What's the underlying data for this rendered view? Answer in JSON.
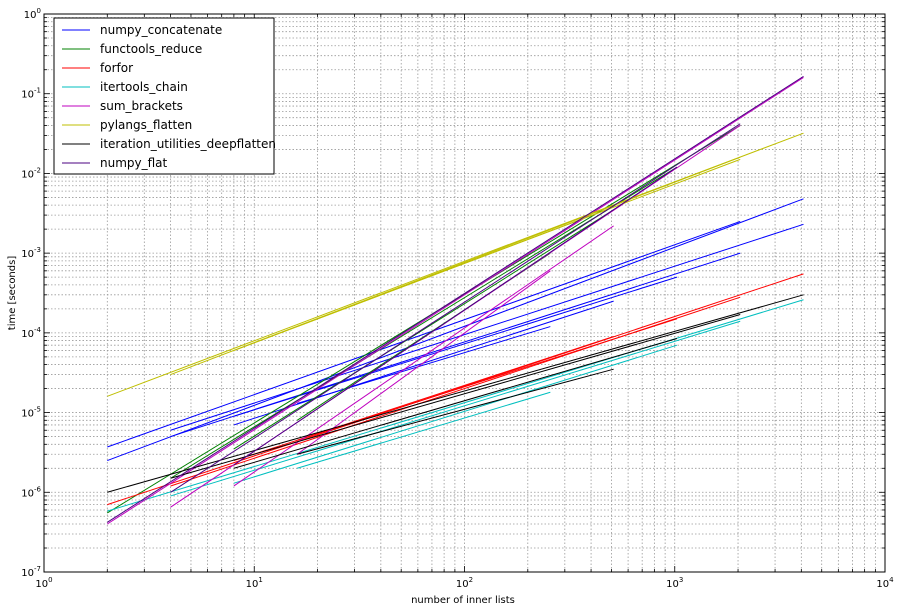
{
  "chart_data": {
    "type": "line",
    "title": "",
    "xlabel": "number of inner lists",
    "ylabel": "time [seconds]",
    "xscale": "log",
    "yscale": "log",
    "xlim": [
      1,
      10000
    ],
    "ylim": [
      1e-07,
      1
    ],
    "grid": true,
    "legend_position": "top-left",
    "x_ticks": [
      {
        "value": 1,
        "base": "10",
        "exp": "0"
      },
      {
        "value": 10,
        "base": "10",
        "exp": "1"
      },
      {
        "value": 100,
        "base": "10",
        "exp": "2"
      },
      {
        "value": 1000,
        "base": "10",
        "exp": "3"
      },
      {
        "value": 10000,
        "base": "10",
        "exp": "4"
      }
    ],
    "y_ticks": [
      {
        "value": 1e-07,
        "base": "10",
        "exp": "-7"
      },
      {
        "value": 1e-06,
        "base": "10",
        "exp": "-6"
      },
      {
        "value": 1e-05,
        "base": "10",
        "exp": "-5"
      },
      {
        "value": 0.0001,
        "base": "10",
        "exp": "-4"
      },
      {
        "value": 0.001,
        "base": "10",
        "exp": "-3"
      },
      {
        "value": 0.01,
        "base": "10",
        "exp": "-2"
      },
      {
        "value": 0.1,
        "base": "10",
        "exp": "-1"
      },
      {
        "value": 1,
        "base": "10",
        "exp": "0"
      }
    ],
    "series": [
      {
        "name": "numpy_concatenate",
        "color": "#0000ff",
        "lines": [
          [
            [
              2,
              3.7e-06
            ],
            [
              2048,
              0.0025
            ]
          ],
          [
            [
              2,
              2.5e-06
            ],
            [
              4096,
              0.0048
            ]
          ],
          [
            [
              4,
              6e-06
            ],
            [
              4096,
              0.0023
            ]
          ],
          [
            [
              4,
              5e-06
            ],
            [
              2048,
              0.001
            ]
          ],
          [
            [
              8,
              9e-06
            ],
            [
              1024,
              0.0005
            ]
          ],
          [
            [
              8,
              7e-06
            ],
            [
              512,
              0.00025
            ]
          ],
          [
            [
              16,
              1.3e-05
            ],
            [
              256,
              0.00012
            ]
          ]
        ]
      },
      {
        "name": "functools_reduce",
        "color": "#008000",
        "lines": [
          [
            [
              2,
              5.5e-07
            ],
            [
              2048,
              0.04
            ]
          ],
          [
            [
              4,
              1.5e-06
            ],
            [
              1024,
              0.012
            ]
          ],
          [
            [
              8,
              3.5e-06
            ],
            [
              512,
              0.0035
            ]
          ],
          [
            [
              16,
              8e-06
            ],
            [
              256,
              0.001
            ]
          ]
        ]
      },
      {
        "name": "forfor",
        "color": "#ff0000",
        "lines": [
          [
            [
              2,
              7e-07
            ],
            [
              4096,
              0.00055
            ]
          ],
          [
            [
              4,
              1.2e-06
            ],
            [
              2048,
              0.00028
            ]
          ],
          [
            [
              8,
              2.5e-06
            ],
            [
              1024,
              0.00015
            ]
          ],
          [
            [
              16,
              4.5e-06
            ],
            [
              512,
              9e-05
            ]
          ]
        ]
      },
      {
        "name": "itertools_chain",
        "color": "#00bfbf",
        "lines": [
          [
            [
              2,
              5.8e-07
            ],
            [
              4096,
              0.00026
            ]
          ],
          [
            [
              4,
              9e-07
            ],
            [
              2048,
              0.00014
            ]
          ],
          [
            [
              8,
              1.3e-06
            ],
            [
              1024,
              7e-05
            ]
          ],
          [
            [
              16,
              2e-06
            ],
            [
              256,
              1.8e-05
            ]
          ]
        ]
      },
      {
        "name": "sum_brackets",
        "color": "#bf00bf",
        "lines": [
          [
            [
              2,
              4e-07
            ],
            [
              4096,
              0.16
            ]
          ],
          [
            [
              4,
              6.5e-07
            ],
            [
              2048,
              0.04
            ]
          ],
          [
            [
              8,
              1.2e-06
            ],
            [
              512,
              0.0022
            ]
          ],
          [
            [
              16,
              3e-06
            ],
            [
              256,
              0.0006
            ]
          ]
        ]
      },
      {
        "name": "pylangs_flatten",
        "color": "#bfbf00",
        "lines": [
          [
            [
              2,
              1.6e-05
            ],
            [
              4096,
              0.032
            ]
          ],
          [
            [
              4,
              3e-05
            ],
            [
              2048,
              0.016
            ]
          ],
          [
            [
              8,
              6e-05
            ],
            [
              2048,
              0.015
            ]
          ],
          [
            [
              16,
              0.00012
            ],
            [
              512,
              0.0038
            ]
          ]
        ]
      },
      {
        "name": "iteration_utilities_deepflatten",
        "color": "#000000",
        "lines": [
          [
            [
              2,
              1e-06
            ],
            [
              4096,
              0.0003
            ]
          ],
          [
            [
              4,
              1.5e-06
            ],
            [
              2048,
              0.00017
            ]
          ],
          [
            [
              8,
              2e-06
            ],
            [
              1024,
              8.5e-05
            ]
          ],
          [
            [
              16,
              3e-06
            ],
            [
              512,
              3.5e-05
            ]
          ]
        ]
      },
      {
        "name": "numpy_flat",
        "color": "#4b0082",
        "lines": [
          [
            [
              2,
              4.2e-07
            ],
            [
              4096,
              0.165
            ]
          ],
          [
            [
              4,
              1e-06
            ],
            [
              2048,
              0.042
            ]
          ],
          [
            [
              8,
              2.2e-06
            ],
            [
              1024,
              0.012
            ]
          ]
        ]
      }
    ]
  }
}
